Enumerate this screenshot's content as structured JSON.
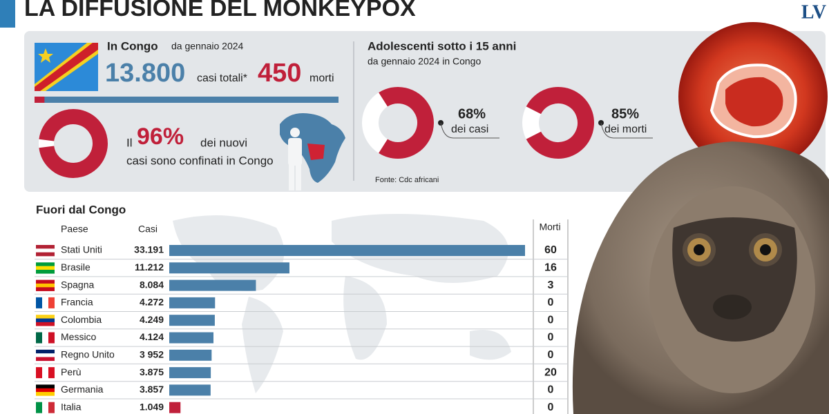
{
  "header": {
    "title": "LA DIFFUSIONE DEL MONKEYPOX",
    "logo": "LV"
  },
  "congo": {
    "title": "In Congo",
    "since": "da gennaio 2024",
    "cases": {
      "value": 13800,
      "label": "13.800"
    },
    "cases_text": "casi totali*",
    "deaths": 450,
    "deaths_text": "morti",
    "share_prefix": "Il",
    "share": {
      "value": 96,
      "label": "96%"
    },
    "share_text_1": "dei nuovi",
    "share_text_2": "casi sono confinati in Congo"
  },
  "adolescents": {
    "title": "Adolescenti sotto i 15 anni",
    "subtitle": "da gennaio 2024 in Congo",
    "items": [
      {
        "value": 68,
        "label": "68%",
        "text": "dei casi"
      },
      {
        "value": 85,
        "label": "85%",
        "text": "dei morti"
      }
    ],
    "source": "Fonte: Cdc africani"
  },
  "outside": {
    "title": "Fuori dal Congo",
    "col_country": "Paese",
    "col_cases": "Casi",
    "col_deaths": "Morti",
    "countries": [
      "Stati Uniti",
      "Brasile",
      "Spagna",
      "Francia",
      "Colombia",
      "Messico",
      "Regno Unito",
      "Perù",
      "Germania",
      "Italia"
    ],
    "cases": [
      33191,
      11212,
      8084,
      4272,
      4249,
      4124,
      3952,
      3875,
      3857,
      1049
    ],
    "cases_labels": [
      "33.191",
      "11.212",
      "8.084",
      "4.272",
      "4.249",
      "4.124",
      "3 952",
      "3.875",
      "3.857",
      "1.049"
    ],
    "deaths": [
      60,
      16,
      3,
      0,
      0,
      0,
      0,
      20,
      0,
      0
    ]
  }
}
